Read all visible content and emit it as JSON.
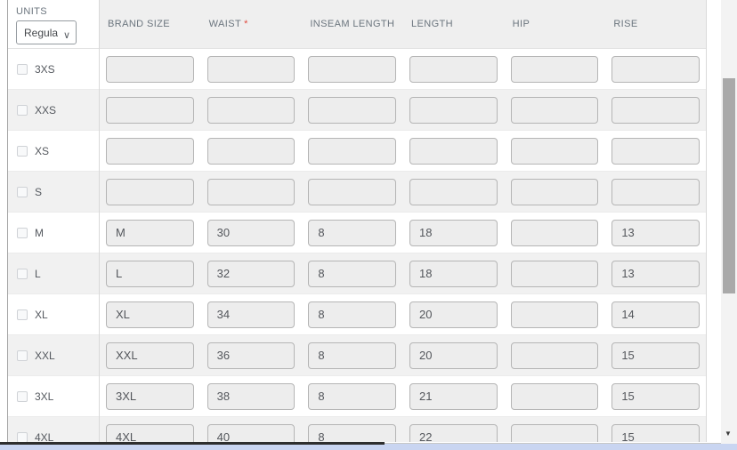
{
  "units": {
    "label": "UNITS",
    "selected": "Regular"
  },
  "required_marker": "*",
  "columns": [
    {
      "key": "brand-size",
      "label": "BRAND SIZE",
      "required": false
    },
    {
      "key": "waist",
      "label": "WAIST",
      "required": true
    },
    {
      "key": "inseam-length",
      "label": "INSEAM LENGTH",
      "required": false
    },
    {
      "key": "length",
      "label": "LENGTH",
      "required": false
    },
    {
      "key": "hip",
      "label": "HIP",
      "required": false
    },
    {
      "key": "rise",
      "label": "RISE",
      "required": false
    }
  ],
  "rows": [
    {
      "size": "3XS",
      "checked": false,
      "values": [
        "",
        "",
        "",
        "",
        "",
        ""
      ]
    },
    {
      "size": "XXS",
      "checked": false,
      "values": [
        "",
        "",
        "",
        "",
        "",
        ""
      ]
    },
    {
      "size": "XS",
      "checked": false,
      "values": [
        "",
        "",
        "",
        "",
        "",
        ""
      ]
    },
    {
      "size": "S",
      "checked": false,
      "values": [
        "",
        "",
        "",
        "",
        "",
        ""
      ]
    },
    {
      "size": "M",
      "checked": false,
      "values": [
        "M",
        "30",
        "8",
        "18",
        "",
        "13"
      ]
    },
    {
      "size": "L",
      "checked": false,
      "values": [
        "L",
        "32",
        "8",
        "18",
        "",
        "13"
      ]
    },
    {
      "size": "XL",
      "checked": false,
      "values": [
        "XL",
        "34",
        "8",
        "20",
        "",
        "14"
      ]
    },
    {
      "size": "XXL",
      "checked": false,
      "values": [
        "XXL",
        "36",
        "8",
        "20",
        "",
        "15"
      ]
    },
    {
      "size": "3XL",
      "checked": false,
      "values": [
        "3XL",
        "38",
        "8",
        "21",
        "",
        "15"
      ]
    },
    {
      "size": "4XL",
      "checked": false,
      "values": [
        "4XL",
        "40",
        "8",
        "22",
        "",
        "15"
      ]
    }
  ],
  "icons": {
    "chevron_down": "∨",
    "scroll_down_arrow": "▼"
  },
  "colors": {
    "header_bg": "#efefef",
    "alt_row_bg": "#f1f1f1",
    "header_text": "#6b757e",
    "required": "#e04a3f",
    "input_bg": "#ededed",
    "input_border": "#b5b5b5",
    "h_scrollbar_track": "#c9d5f1",
    "h_scrollbar_thumb": "#2e2e2e",
    "v_scrollbar_thumb": "#a9a9a9"
  }
}
